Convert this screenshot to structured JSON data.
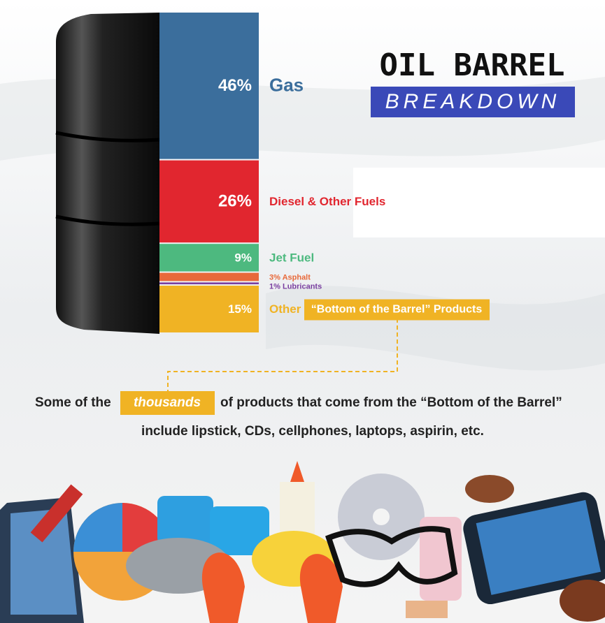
{
  "chart_data": {
    "type": "barrel",
    "title": "OIL BARREL",
    "subtitle": "BREAKDOWN",
    "series": [
      {
        "name": "Gas",
        "color": "#3b6e9c",
        "values": [
          46
        ],
        "value_labels": [
          "46%"
        ]
      },
      {
        "name": "Diesel & Other Fuels",
        "color": "#e1262f",
        "values": [
          26
        ],
        "value_labels": [
          "26%"
        ]
      },
      {
        "name": "Jet Fuel",
        "color": "#4db97f",
        "values": [
          9
        ],
        "value_labels": [
          "9%"
        ]
      },
      {
        "name": "Asphalt",
        "color": "#e8693a",
        "values": [
          3
        ],
        "value_labels": [
          "3%"
        ]
      },
      {
        "name": "Lubricants",
        "color": "#7a3fa0",
        "values": [
          1
        ],
        "value_labels": [
          "1%"
        ]
      },
      {
        "name": "Other",
        "color": "#f0b324",
        "values": [
          15
        ],
        "value_labels": [
          "15%"
        ]
      }
    ],
    "annotations": {
      "other_note": "“Bottom of the Barrel” Products",
      "sentence_start": "Some of the",
      "highlight": "thousands",
      "sentence_end": "of products that come from the “Bottom of the Barrel”",
      "sentence_line2": "include lipstick, CDs, cellphones, laptops, aspirin, etc."
    }
  }
}
